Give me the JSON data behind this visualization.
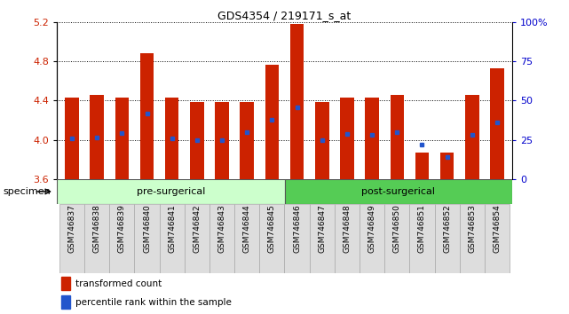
{
  "title": "GDS4354 / 219171_s_at",
  "samples": [
    "GSM746837",
    "GSM746838",
    "GSM746839",
    "GSM746840",
    "GSM746841",
    "GSM746842",
    "GSM746843",
    "GSM746844",
    "GSM746845",
    "GSM746846",
    "GSM746847",
    "GSM746848",
    "GSM746849",
    "GSM746850",
    "GSM746851",
    "GSM746852",
    "GSM746853",
    "GSM746854"
  ],
  "bar_values": [
    4.43,
    4.46,
    4.43,
    4.88,
    4.43,
    4.38,
    4.38,
    4.38,
    4.76,
    5.18,
    4.38,
    4.43,
    4.43,
    4.46,
    3.87,
    3.87,
    4.46,
    4.73
  ],
  "percentile_values": [
    4.01,
    4.02,
    4.07,
    4.27,
    4.01,
    4.0,
    4.0,
    4.08,
    4.2,
    4.33,
    4.0,
    4.06,
    4.05,
    4.08,
    3.95,
    3.82,
    4.05,
    4.18
  ],
  "ymin": 3.6,
  "ymax": 5.2,
  "y_ticks": [
    3.6,
    4.0,
    4.4,
    4.8,
    5.2
  ],
  "right_y_ticks": [
    0,
    25,
    50,
    75,
    100
  ],
  "right_y_labels": [
    "0",
    "25",
    "50",
    "75",
    "100%"
  ],
  "bar_color": "#cc2200",
  "percentile_color": "#2255cc",
  "bar_bottom": 3.6,
  "pre_surgical_count": 9,
  "post_surgical_count": 9,
  "pre_label": "pre-surgerical",
  "post_label": "post-surgerical",
  "pre_color": "#ccffcc",
  "post_color": "#55cc55",
  "legend_tc": "transformed count",
  "legend_pr": "percentile rank within the sample"
}
